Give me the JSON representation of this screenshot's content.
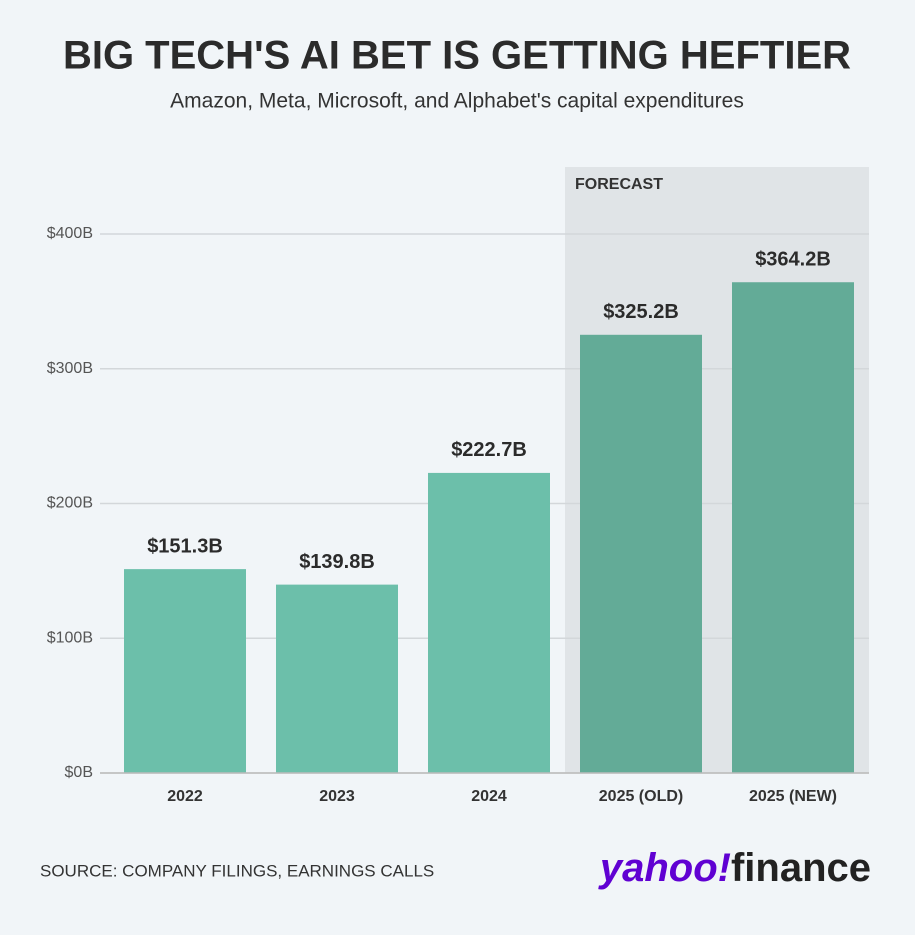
{
  "chart_data": {
    "type": "bar",
    "title": "BIG TECH'S AI BET IS GETTING HEFTIER",
    "subtitle": "Amazon, Meta, Microsoft, and Alphabet's capital expenditures",
    "categories": [
      "2022",
      "2023",
      "2024",
      "2025 (OLD)",
      "2025 (NEW)"
    ],
    "values": [
      151.3,
      139.8,
      222.7,
      325.2,
      364.2
    ],
    "value_labels": [
      "$151.3B",
      "$139.8B",
      "$222.7B",
      "$325.2B",
      "$364.2B"
    ],
    "colors": [
      "#6cbfaa",
      "#6cbfaa",
      "#6cbfaa",
      "#63ab97",
      "#63ab97"
    ],
    "ylim": [
      0,
      400
    ],
    "yticks": [
      {
        "value": 0,
        "label": "$0B"
      },
      {
        "value": 100,
        "label": "$100B"
      },
      {
        "value": 200,
        "label": "$200B"
      },
      {
        "value": 300,
        "label": "$300B"
      },
      {
        "value": 400,
        "label": "$400B"
      }
    ],
    "grid": true,
    "shaded_region": {
      "label": "FORECAST",
      "categories": [
        "2025 (OLD)",
        "2025 (NEW)"
      ]
    },
    "source": "SOURCE: COMPANY FILINGS, EARNINGS CALLS",
    "brand": [
      "yahoo!",
      "finance"
    ]
  }
}
